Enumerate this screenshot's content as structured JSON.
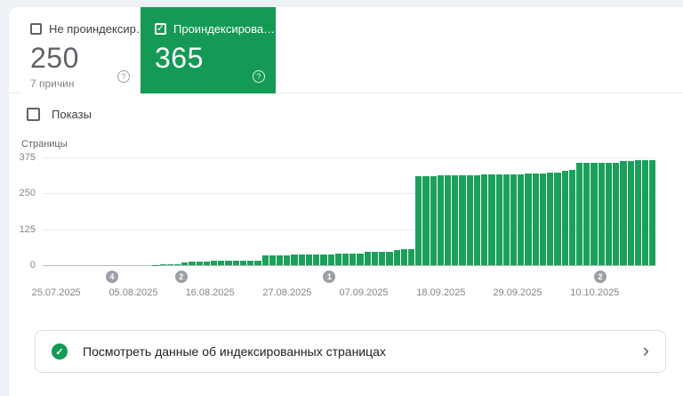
{
  "colors": {
    "green_card": "#149a55",
    "green_bar": "#1ba05b",
    "marker_gray": "#9aa0a6"
  },
  "cards": {
    "not_indexed": {
      "label": "Не проиндексир…",
      "value": "250",
      "sublabel": "7 причин",
      "checked": false,
      "help_glyph": "?"
    },
    "indexed": {
      "label": "Проиндексирова…",
      "value": "365",
      "checked": true,
      "check_glyph": "✓",
      "help_glyph": "?"
    }
  },
  "impressions_toggle": {
    "label": "Показы",
    "checked": false
  },
  "chart_data": {
    "type": "bar",
    "title": "Страницы",
    "ylabel": "Страницы",
    "ylim": [
      0,
      375
    ],
    "yticks": [
      375,
      250,
      125,
      0
    ],
    "grid": true,
    "legend": "none",
    "x_tick_labels": [
      "25.07.2025",
      "05.08.2025",
      "16.08.2025",
      "27.08.2025",
      "07.09.2025",
      "18.09.2025",
      "29.09.2025",
      "10.10.2025"
    ],
    "x_tick_positions_pct": [
      2.2,
      14.8,
      27.3,
      39.9,
      52.4,
      65.0,
      77.5,
      90.1
    ],
    "values": [
      0,
      0,
      0,
      0,
      0,
      0,
      0,
      0,
      0,
      0,
      0,
      0,
      0,
      0,
      0,
      1,
      2,
      2,
      3,
      8,
      12,
      13,
      13,
      14,
      14,
      15,
      15,
      16,
      16,
      17,
      33,
      34,
      35,
      35,
      36,
      36,
      37,
      37,
      38,
      38,
      39,
      39,
      40,
      41,
      46,
      46,
      47,
      48,
      54,
      55,
      57,
      310,
      311,
      311,
      312,
      312,
      313,
      313,
      314,
      314,
      315,
      315,
      316,
      316,
      317,
      317,
      318,
      318,
      320,
      322,
      322,
      330,
      332,
      357,
      358,
      358,
      357,
      357,
      356,
      363,
      364,
      365,
      365,
      365
    ],
    "markers": [
      {
        "label": "4",
        "position_pct": 11.3
      },
      {
        "label": "2",
        "position_pct": 22.6
      },
      {
        "label": "1",
        "position_pct": 46.8
      },
      {
        "label": "2",
        "position_pct": 91.0
      }
    ]
  },
  "footer_link": {
    "label": "Посмотреть данные об индексированных страницах",
    "check_glyph": "✓",
    "chevron_glyph": "›"
  }
}
